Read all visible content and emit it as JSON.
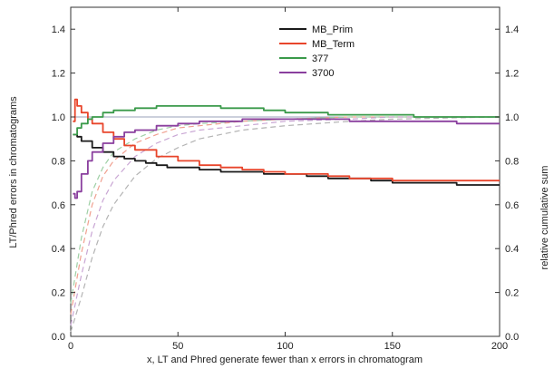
{
  "chart_data": {
    "type": "line",
    "title": "",
    "xlabel": "x, LT and Phred generate fewer than x errors in chromatogram",
    "ylabel": "LT/Phred errors in chromatograms",
    "y2label": "relative cumulative sum",
    "xlim": [
      0,
      200
    ],
    "ylim": [
      0,
      1.5
    ],
    "y2lim": [
      0,
      1.5
    ],
    "xticks": [
      "0",
      "50",
      "100",
      "150",
      "200"
    ],
    "xtick_values": [
      0,
      50,
      100,
      150,
      200
    ],
    "yticks": [
      "0.0",
      "0.2",
      "0.4",
      "0.6",
      "0.8",
      "1.0",
      "1.2",
      "1.4"
    ],
    "ytick_values": [
      0,
      0.2,
      0.4,
      0.6,
      0.8,
      1.0,
      1.2,
      1.4
    ],
    "grid": false,
    "reference_line": 1.0,
    "legend_position": "top-center",
    "series": [
      {
        "name": "MB_Prim",
        "color": "#1a1a1a",
        "axis": "left",
        "x": [
          1,
          3,
          5,
          10,
          15,
          20,
          25,
          30,
          35,
          40,
          45,
          50,
          60,
          70,
          80,
          90,
          100,
          110,
          120,
          130,
          140,
          150,
          160,
          170,
          180,
          190,
          200
        ],
        "y": [
          0.92,
          0.91,
          0.89,
          0.86,
          0.84,
          0.82,
          0.81,
          0.8,
          0.79,
          0.78,
          0.77,
          0.77,
          0.76,
          0.75,
          0.75,
          0.74,
          0.74,
          0.73,
          0.72,
          0.72,
          0.71,
          0.7,
          0.7,
          0.7,
          0.69,
          0.69,
          0.69
        ]
      },
      {
        "name": "MB_Term",
        "color": "#e8452b",
        "axis": "left",
        "x": [
          1,
          2,
          3,
          5,
          8,
          10,
          15,
          20,
          25,
          30,
          40,
          50,
          60,
          70,
          80,
          90,
          100,
          110,
          120,
          130,
          140,
          150,
          160,
          170,
          180,
          190,
          200
        ],
        "y": [
          0.98,
          1.08,
          1.05,
          1.02,
          0.99,
          0.97,
          0.93,
          0.9,
          0.87,
          0.85,
          0.82,
          0.8,
          0.78,
          0.77,
          0.76,
          0.75,
          0.74,
          0.74,
          0.73,
          0.72,
          0.72,
          0.71,
          0.71,
          0.71,
          0.71,
          0.71,
          0.71
        ]
      },
      {
        "name": "377",
        "color": "#3a9a4a",
        "axis": "left",
        "x": [
          1,
          3,
          5,
          8,
          10,
          15,
          20,
          30,
          40,
          50,
          60,
          70,
          80,
          90,
          100,
          110,
          120,
          130,
          140,
          150,
          160,
          170,
          180,
          190,
          200
        ],
        "y": [
          0.92,
          0.95,
          0.97,
          0.99,
          1.0,
          1.02,
          1.03,
          1.04,
          1.05,
          1.05,
          1.05,
          1.04,
          1.04,
          1.03,
          1.02,
          1.02,
          1.01,
          1.01,
          1.01,
          1.01,
          1.0,
          1.0,
          1.0,
          1.0,
          1.0
        ]
      },
      {
        "name": "3700",
        "color": "#8a3f9e",
        "axis": "left",
        "x": [
          1,
          2,
          3,
          5,
          8,
          10,
          15,
          20,
          25,
          30,
          40,
          50,
          60,
          70,
          80,
          90,
          100,
          110,
          120,
          130,
          140,
          150,
          160,
          170,
          180,
          190,
          200
        ],
        "y": [
          0.65,
          0.63,
          0.66,
          0.74,
          0.8,
          0.84,
          0.88,
          0.91,
          0.93,
          0.94,
          0.96,
          0.97,
          0.98,
          0.98,
          0.99,
          0.99,
          0.99,
          0.99,
          0.99,
          0.98,
          0.98,
          0.98,
          0.98,
          0.98,
          0.97,
          0.97,
          0.97
        ]
      },
      {
        "color": "#f0a090",
        "axis": "right",
        "dashed": true,
        "x": [
          0,
          5,
          10,
          15,
          20,
          30,
          40,
          50,
          60,
          80,
          100,
          130,
          150,
          200
        ],
        "y": [
          0.1,
          0.38,
          0.6,
          0.73,
          0.8,
          0.88,
          0.92,
          0.95,
          0.96,
          0.98,
          0.99,
          1.0,
          1.0,
          1.0
        ]
      },
      {
        "color": "#9fcfa5",
        "axis": "right",
        "dashed": true,
        "x": [
          0,
          5,
          10,
          15,
          20,
          30,
          40,
          50,
          60,
          80,
          100,
          130,
          150,
          200
        ],
        "y": [
          0.15,
          0.45,
          0.66,
          0.77,
          0.84,
          0.9,
          0.94,
          0.96,
          0.97,
          0.98,
          0.99,
          1.0,
          1.0,
          1.0
        ]
      },
      {
        "color": "#b3b3b3",
        "axis": "right",
        "dashed": true,
        "x": [
          0,
          5,
          10,
          15,
          20,
          30,
          40,
          50,
          60,
          80,
          100,
          130,
          150,
          200
        ],
        "y": [
          0.02,
          0.18,
          0.36,
          0.5,
          0.6,
          0.73,
          0.81,
          0.86,
          0.9,
          0.94,
          0.96,
          0.98,
          0.99,
          1.0
        ]
      },
      {
        "color": "#c9a6d4",
        "axis": "right",
        "dashed": true,
        "x": [
          0,
          5,
          10,
          15,
          20,
          30,
          40,
          50,
          60,
          80,
          100,
          130,
          150,
          200
        ],
        "y": [
          0.05,
          0.28,
          0.48,
          0.62,
          0.71,
          0.82,
          0.88,
          0.92,
          0.94,
          0.96,
          0.98,
          0.99,
          1.0,
          1.0
        ]
      }
    ]
  }
}
